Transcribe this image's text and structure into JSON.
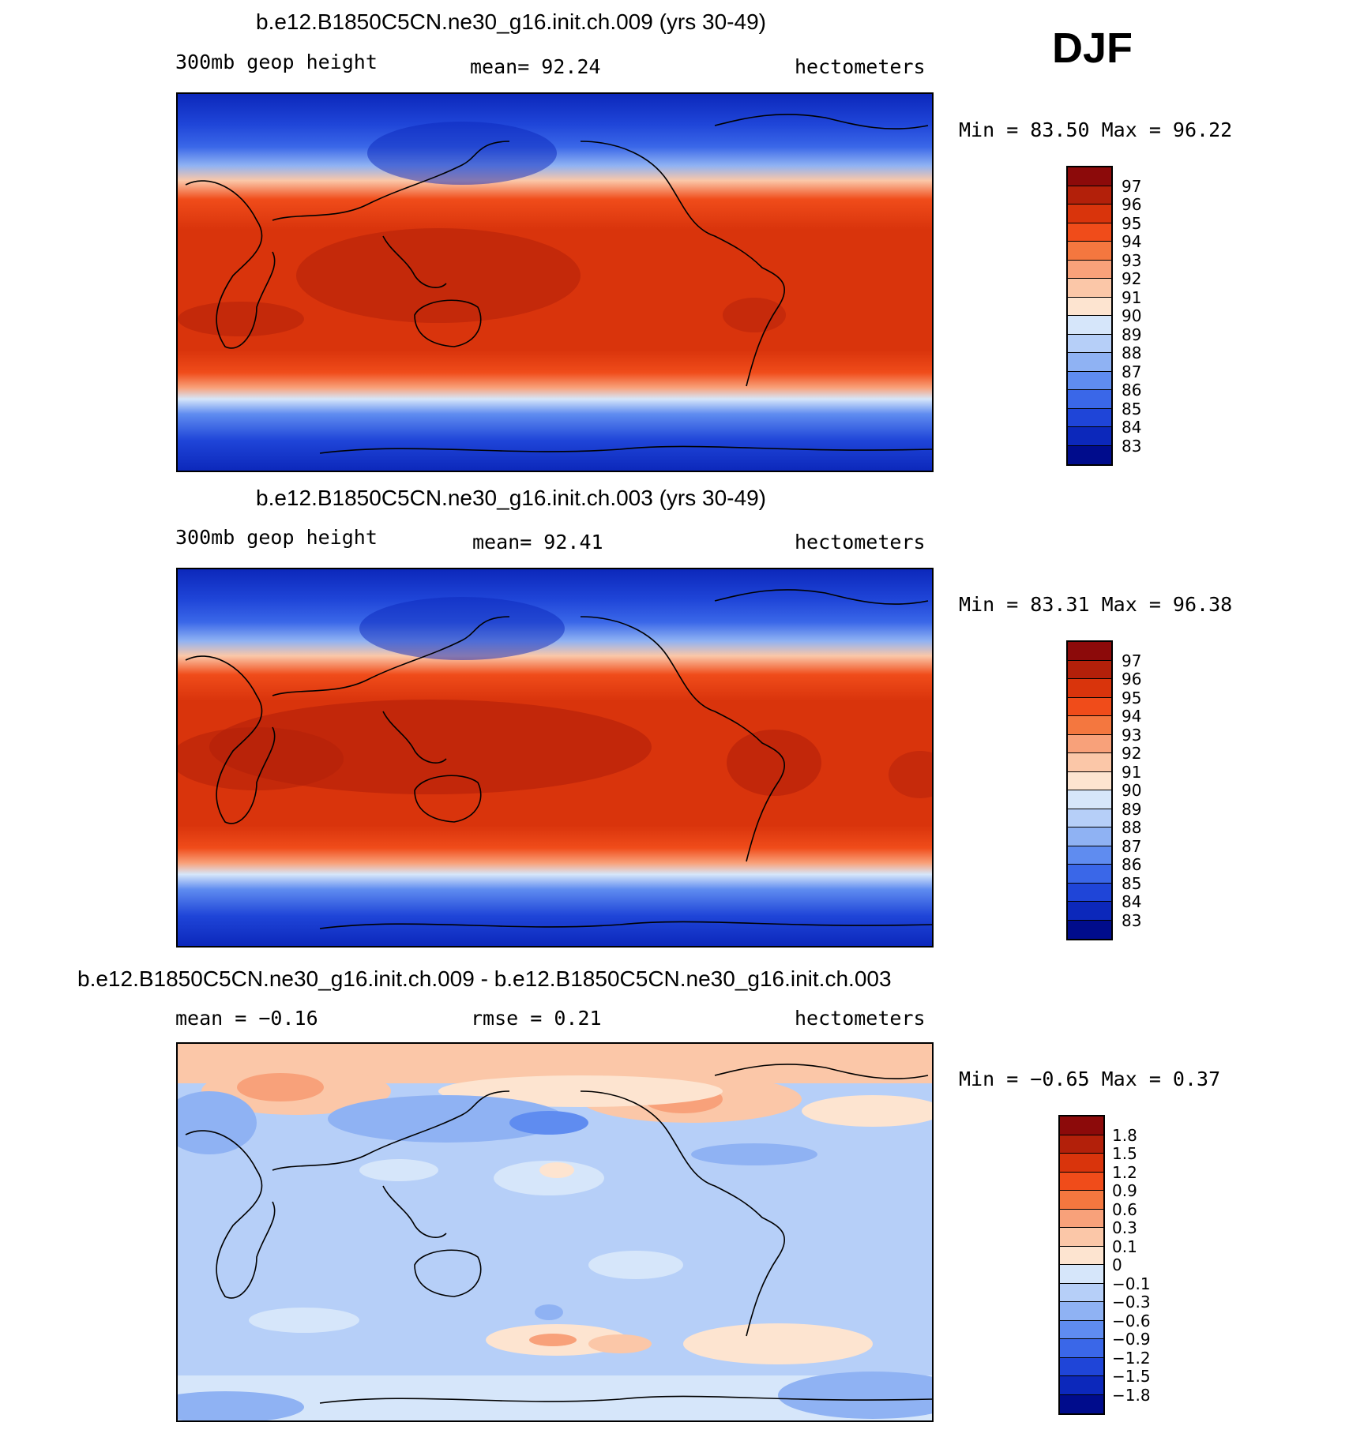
{
  "season": "DJF",
  "panels": [
    {
      "title": "b.e12.B1850C5CN.ne30_g16.init.ch.009 (yrs 30-49)",
      "left_label": "300mb geop height",
      "center_label": "mean=  92.24",
      "units": "hectometers",
      "minmax": "Min =  83.50 Max =  96.22"
    },
    {
      "title": "b.e12.B1850C5CN.ne30_g16.init.ch.003 (yrs 30-49)",
      "left_label": "300mb geop height",
      "center_label": "mean=  92.41",
      "units": "hectometers",
      "minmax": "Min =  83.31 Max =  96.38"
    },
    {
      "title": "b.e12.B1850C5CN.ne30_g16.init.ch.009 - b.e12.B1850C5CN.ne30_g16.init.ch.003",
      "left_label": "mean =  −0.16",
      "center_label": "rmse =   0.21",
      "units": "hectometers",
      "minmax": "Min =  −0.65 Max =   0.37"
    }
  ],
  "colorbar_abs": {
    "labels": [
      "97",
      "96",
      "95",
      "94",
      "93",
      "92",
      "91",
      "90",
      "89",
      "88",
      "87",
      "86",
      "85",
      "84",
      "83"
    ],
    "colors": [
      "#8c0a0a",
      "#b3200a",
      "#d9340c",
      "#f04c1a",
      "#f4773f",
      "#f8a17a",
      "#fbc7a8",
      "#fde4d0",
      "#d6e6fa",
      "#b6cff8",
      "#8fb2f3",
      "#5f8cf0",
      "#3a67e8",
      "#1f45d8",
      "#0c28bb",
      "#000c8c"
    ]
  },
  "colorbar_diff": {
    "labels": [
      "1.8",
      "1.5",
      "1.2",
      "0.9",
      "0.6",
      "0.3",
      "0.1",
      "0",
      "−0.1",
      "−0.3",
      "−0.6",
      "−0.9",
      "−1.2",
      "−1.5",
      "−1.8"
    ],
    "colors": [
      "#8c0a0a",
      "#b3200a",
      "#d9340c",
      "#f04c1a",
      "#f4773f",
      "#f8a17a",
      "#fbc7a8",
      "#fde4d0",
      "#d6e6fa",
      "#b6cff8",
      "#8fb2f3",
      "#5f8cf0",
      "#3a67e8",
      "#1f45d8",
      "#0c28bb",
      "#000c8c"
    ]
  }
}
